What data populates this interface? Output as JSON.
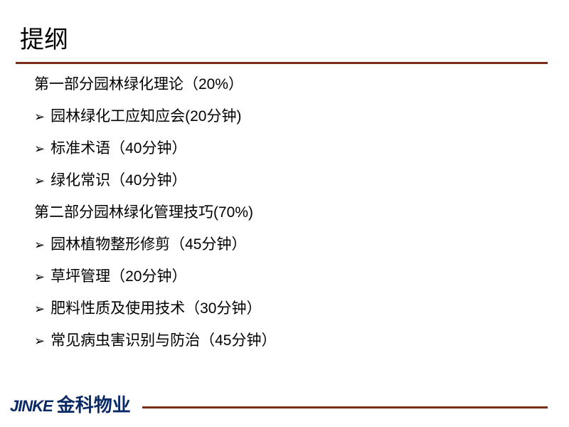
{
  "title": "提纲",
  "lines": [
    {
      "bullet": false,
      "text": "第一部分园林绿化理论（20%）"
    },
    {
      "bullet": true,
      "text": "园林绿化工应知应会(20分钟)"
    },
    {
      "bullet": true,
      "text": "标准术语（40分钟）"
    },
    {
      "bullet": true,
      "text": "绿化常识（40分钟）"
    },
    {
      "bullet": false,
      "text": "第二部分园林绿化管理技巧(70%)"
    },
    {
      "bullet": true,
      "text": "园林植物整形修剪（45分钟）"
    },
    {
      "bullet": true,
      "text": "草坪管理（20分钟）"
    },
    {
      "bullet": true,
      "text": "肥料性质及使用技术（30分钟）"
    },
    {
      "bullet": true,
      "text": "常见病虫害识别与防治（45分钟）"
    }
  ],
  "logo": {
    "en": "JINKE",
    "cn": "金科物业"
  },
  "colors": {
    "rule": "#7a2e1a",
    "text": "#000000",
    "logo": "#0a2a66",
    "background": "#ffffff"
  },
  "bullet_glyph": "➢"
}
